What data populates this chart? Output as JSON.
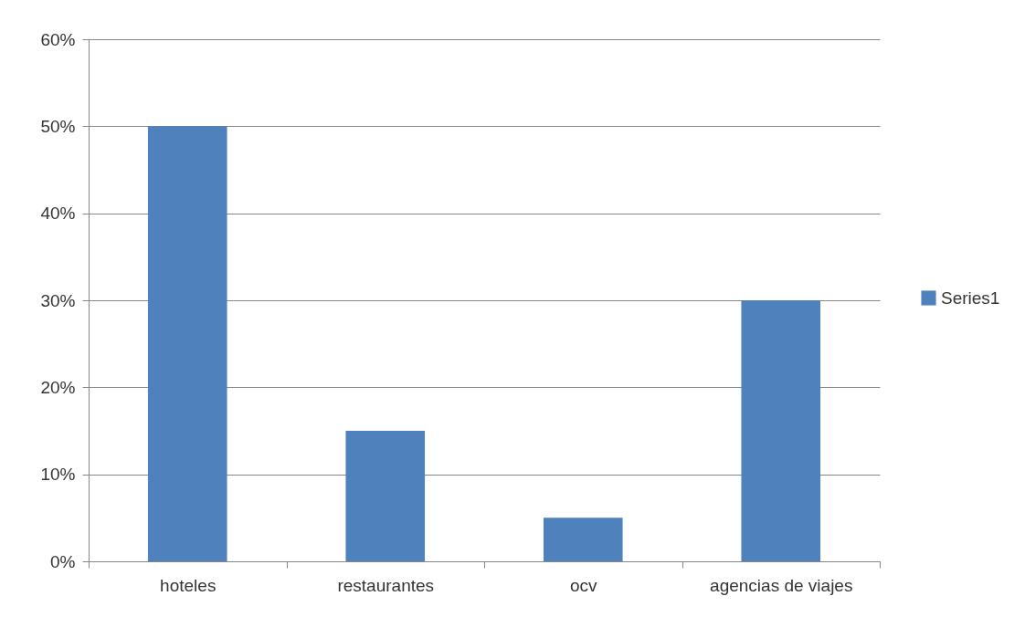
{
  "chart_data": {
    "type": "bar",
    "categories": [
      "hoteles",
      "restaurantes",
      "ocv",
      "agencias de viajes"
    ],
    "series": [
      {
        "name": "Series1",
        "color": "#4f81bd",
        "values": [
          50,
          15,
          5,
          30
        ]
      }
    ],
    "ylim": [
      0,
      60
    ],
    "yticks": [
      {
        "value": 0,
        "label": "0%"
      },
      {
        "value": 10,
        "label": "10%"
      },
      {
        "value": 20,
        "label": "20%"
      },
      {
        "value": 30,
        "label": "30%"
      },
      {
        "value": 40,
        "label": "40%"
      },
      {
        "value": 50,
        "label": "50%"
      },
      {
        "value": 60,
        "label": "60%"
      }
    ],
    "grid": "y",
    "legend": "right"
  }
}
